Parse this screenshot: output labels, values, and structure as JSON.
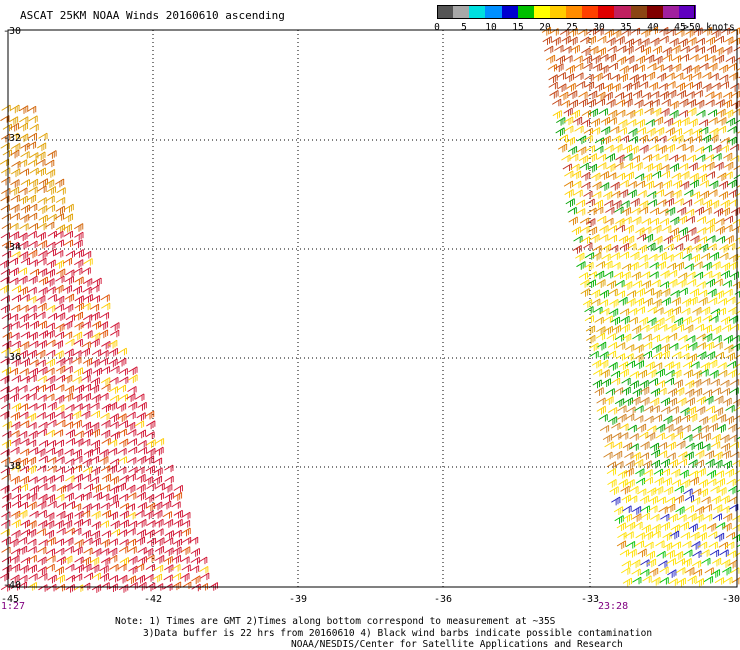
{
  "title": "ASCAT 25KM NOAA Winds 20160610 ascending",
  "colorbar": {
    "unit_label": ">50 knots",
    "labels": [
      "0",
      "5",
      "10",
      "15",
      "20",
      "25",
      "30",
      "35",
      "40",
      "45"
    ],
    "colors": [
      "#555555",
      "#a8a8a8",
      "#00e0e0",
      "#0090ff",
      "#0000d0",
      "#00c000",
      "#ffff00",
      "#ffcc00",
      "#ff8c00",
      "#ff4000",
      "#e00000",
      "#c02060",
      "#8b4513",
      "#800000",
      "#a0209e",
      "#6000c0"
    ]
  },
  "map": {
    "lat_labels": [
      "-30",
      "-32",
      "-34",
      "-36",
      "-38",
      "-40"
    ],
    "lon_labels": [
      "-42",
      "-39",
      "-36",
      "-33",
      "-30"
    ],
    "corner_lon_label": "-45",
    "time_left": "1:27",
    "time_right": "23:28"
  },
  "notes": {
    "line1": "Note: 1) Times are GMT 2)Times along bottom correspond to measurement at ~35S",
    "line2": "3)Data buffer is 22 hrs from 20160610 4) Black wind barbs indicate possible contamination",
    "line3": "NOAA/NESDIS/Center for Satellite Applications and Research"
  }
}
